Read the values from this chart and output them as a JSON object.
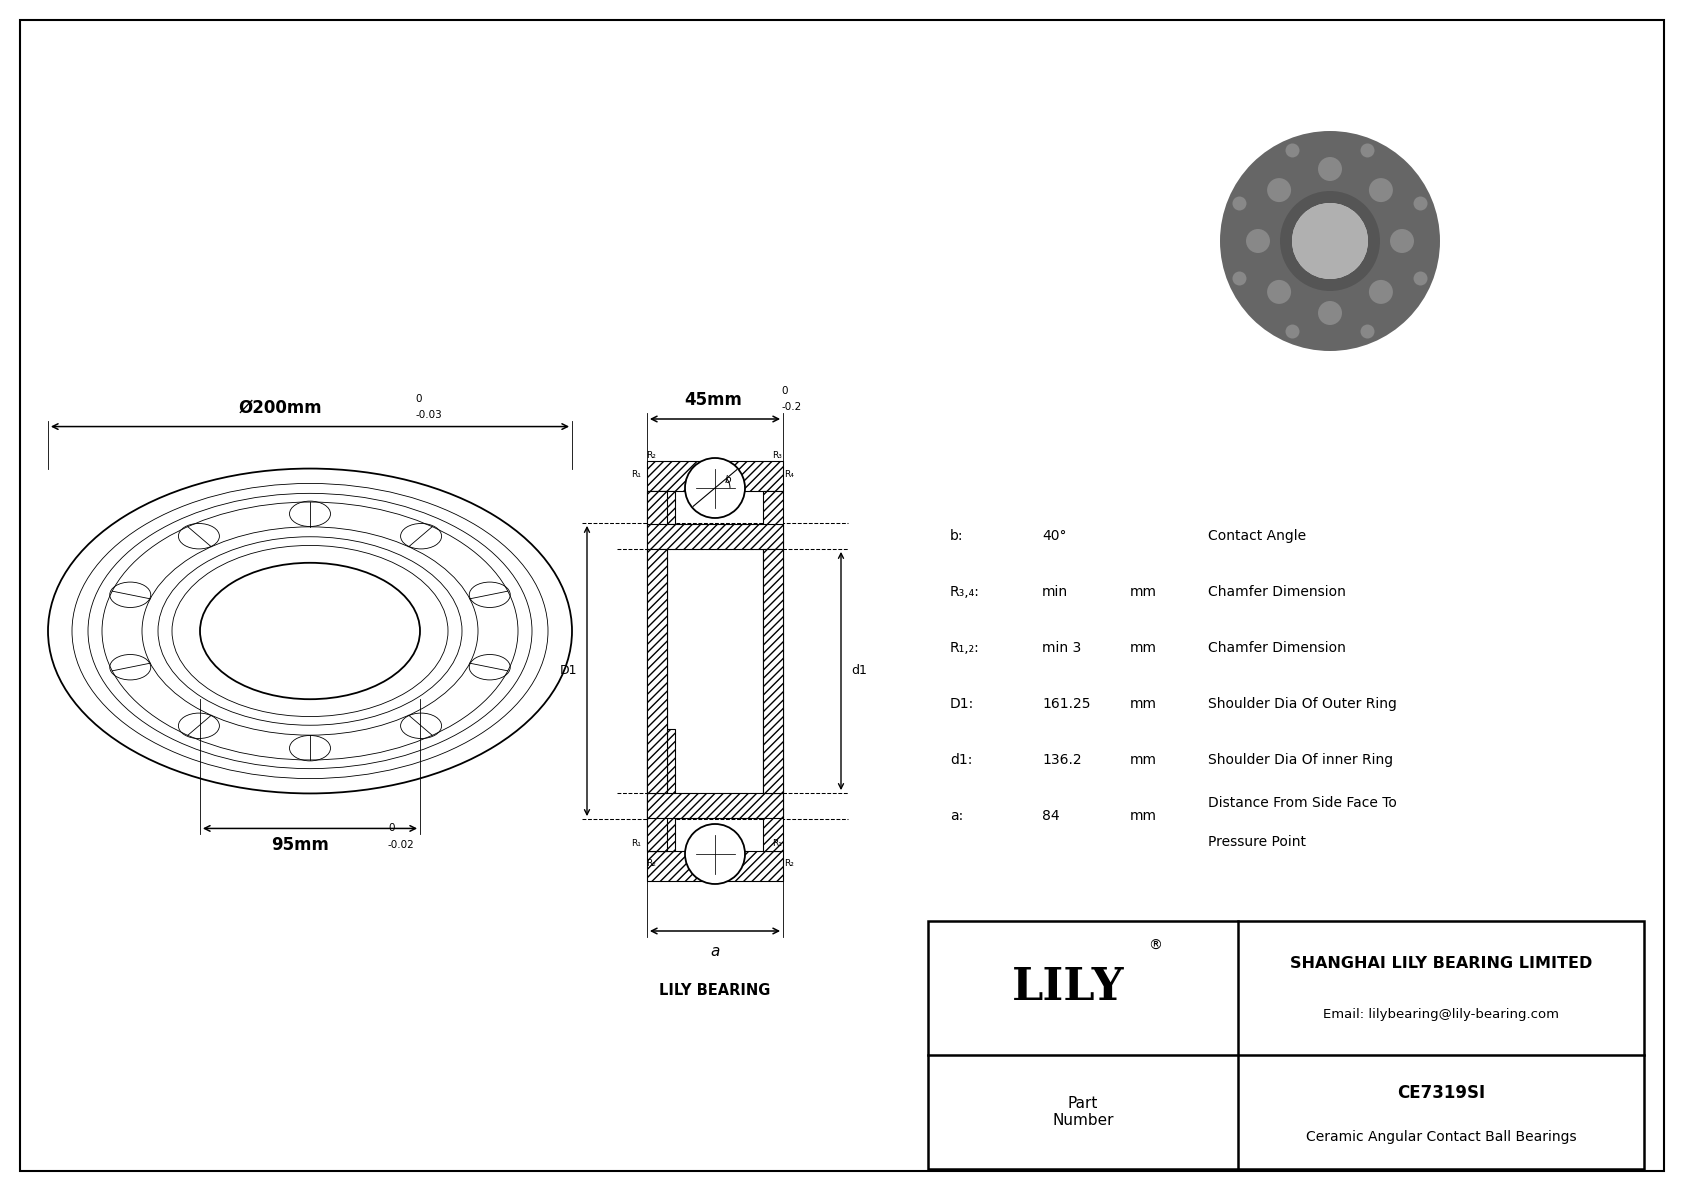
{
  "bg_color": "#ffffff",
  "line_color": "#000000",
  "outer_dim_text": "Ø200mm",
  "outer_tol_upper": "0",
  "outer_tol_lower": "-0.03",
  "width_dim_text": "45mm",
  "width_tol_upper": "0",
  "width_tol_lower": "-0.2",
  "inner_dim_text": "95mm",
  "inner_tol_upper": "0",
  "inner_tol_lower": "-0.02",
  "specs": [
    {
      "label": "b:",
      "value": "40°",
      "unit": "",
      "desc": "Contact Angle"
    },
    {
      "label": "R₃,₄:",
      "value": "min",
      "unit": "mm",
      "desc": "Chamfer Dimension"
    },
    {
      "label": "R₁,₂:",
      "value": "min 3",
      "unit": "mm",
      "desc": "Chamfer Dimension"
    },
    {
      "label": "D1:",
      "value": "161.25",
      "unit": "mm",
      "desc": "Shoulder Dia Of Outer Ring"
    },
    {
      "label": "d1:",
      "value": "136.2",
      "unit": "mm",
      "desc": "Shoulder Dia Of inner Ring"
    },
    {
      "label": "a:",
      "value": "84",
      "unit": "mm",
      "desc": "Distance From Side Face To\nPressure Point"
    }
  ],
  "brand": "LILY",
  "brand_reg": "®",
  "company_name": "SHANGHAI LILY BEARING LIMITED",
  "company_email": "Email: lilybearing@lily-bearing.com",
  "part_label": "Part\nNumber",
  "part_number": "CE7319SI",
  "part_desc": "Ceramic Angular Contact Ball Bearings",
  "lily_bearing_label": "LILY BEARING"
}
